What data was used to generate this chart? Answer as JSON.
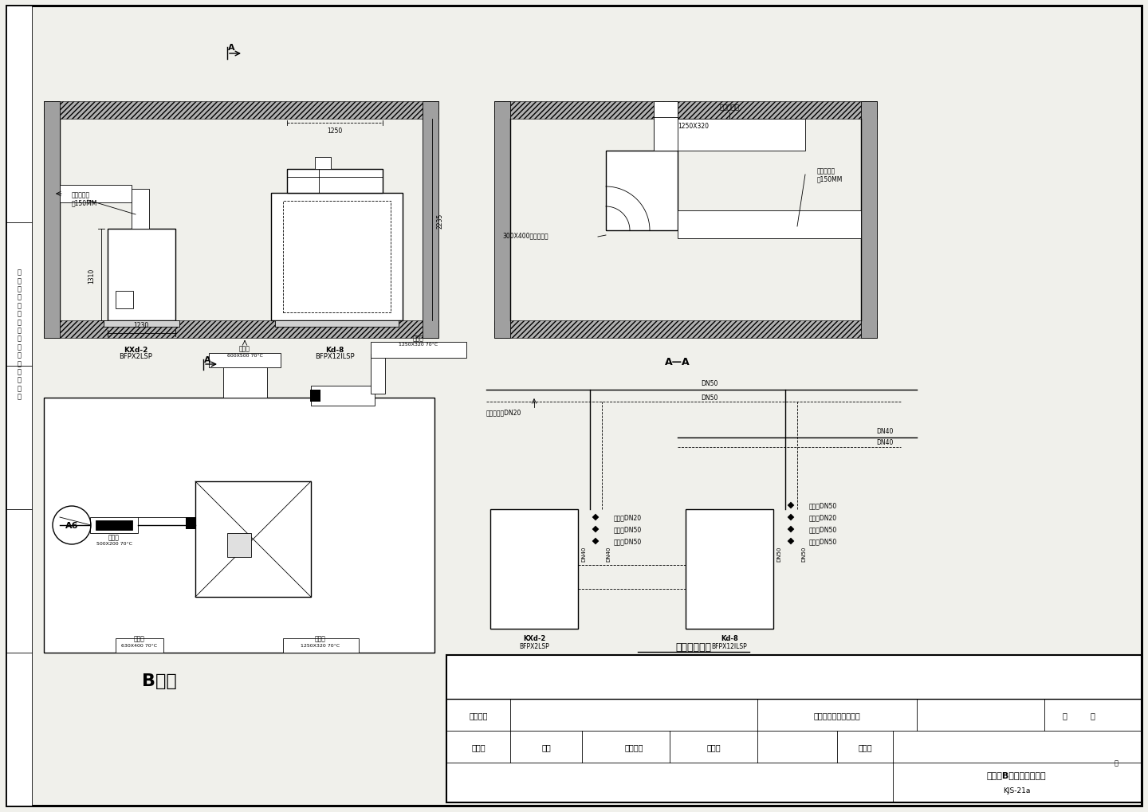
{
  "bg_color": "#f0f0eb",
  "line_color": "#000000",
  "title_b_room": "B机房",
  "water_system_title": "水系统示意图",
  "section_label": "A—A",
  "unit1_name": "KXd-2\nBFPX2LSP",
  "unit2_name": "Kd-8\nBFPX12ILSP"
}
